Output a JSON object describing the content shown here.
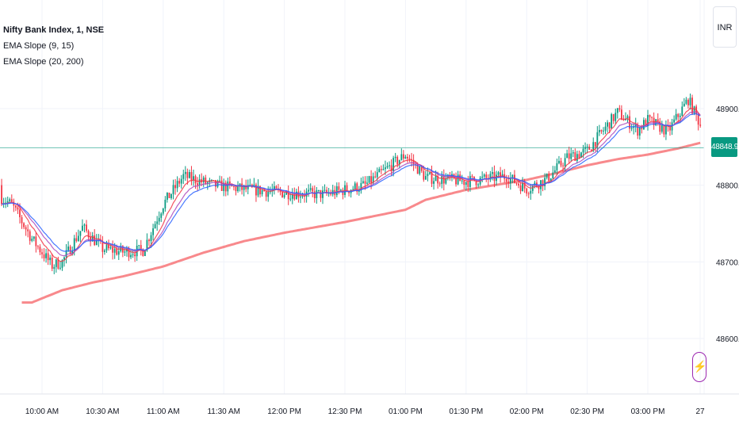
{
  "legend": {
    "title": "Nifty Bank Index, 1, NSE",
    "ind1": "EMA Slope (9, 15)",
    "ind2": "EMA Slope (20, 200)"
  },
  "currency": "INR",
  "last_price_label": "48848.90",
  "colors": {
    "up": "#089981",
    "down": "#f23645",
    "ema_fast": "#f23645",
    "ema_mid": "#2962ff",
    "ema_long": "#f77c80",
    "price_line": "#089981",
    "grid": "#f0f3fa",
    "text": "#131722"
  },
  "chart_data": {
    "type": "candlestick",
    "symbol": "Nifty Bank Index",
    "interval": "1",
    "exchange": "NSE",
    "y_ticks": [
      48900.0,
      48800.0,
      48700.0,
      48600.0
    ],
    "y_tick_labels": [
      "48900.00",
      "48800.00",
      "48700.00",
      "48600.00"
    ],
    "ylim": [
      48580,
      49020
    ],
    "x_tick_labels": [
      "10:00 AM",
      "10:30 AM",
      "11:00 AM",
      "11:30 AM",
      "12:00 PM",
      "12:30 PM",
      "01:00 PM",
      "01:30 PM",
      "02:00 PM",
      "02:30 PM",
      "03:00 PM",
      "27"
    ],
    "last_price": 48848.9,
    "ema_200_profile": {
      "x": [
        "09:55 AM",
        "10:10 AM",
        "10:25 AM",
        "10:40 AM",
        "11:00 AM",
        "11:20 AM",
        "11:40 AM",
        "12:00 PM",
        "12:30 PM",
        "01:00 PM",
        "01:10 PM",
        "01:30 PM",
        "02:00 PM",
        "02:15 PM",
        "02:30 PM",
        "02:45 PM",
        "03:00 PM",
        "03:15 PM",
        "03:27 PM"
      ],
      "values": [
        48647,
        48663,
        48673,
        48681,
        48694,
        48712,
        48727,
        48738,
        48752,
        48768,
        48781,
        48794,
        48807,
        48816,
        48826,
        48834,
        48840,
        48848,
        48856
      ]
    },
    "price_profile": {
      "x": [
        "09:30 AM",
        "09:45 AM",
        "09:55 AM",
        "10:05 AM",
        "10:10 AM",
        "10:20 AM",
        "10:30 AM",
        "10:40 AM",
        "10:50 AM",
        "11:00 AM",
        "11:10 AM",
        "11:25 AM",
        "11:40 AM",
        "12:00 PM",
        "12:20 PM",
        "12:40 PM",
        "01:00 PM",
        "01:10 PM",
        "01:30 PM",
        "01:50 PM",
        "02:00 PM",
        "02:10 PM",
        "02:20 PM",
        "02:30 PM",
        "02:45 PM",
        "02:55 PM",
        "03:00 PM",
        "03:10 PM",
        "03:20 PM",
        "03:28 PM"
      ],
      "values": [
        48800,
        48775,
        48730,
        48695,
        48700,
        48745,
        48717,
        48713,
        48715,
        48775,
        48812,
        48800,
        48795,
        48790,
        48788,
        48800,
        48840,
        48810,
        48805,
        48812,
        48795,
        48808,
        48836,
        48845,
        48895,
        48872,
        48885,
        48870,
        48912,
        48868
      ]
    }
  }
}
